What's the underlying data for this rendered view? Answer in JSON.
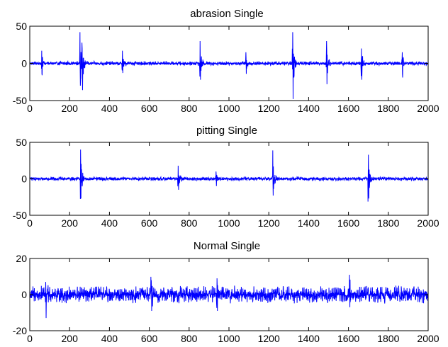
{
  "chart_data": [
    {
      "type": "line",
      "title": "abrasion Single",
      "xlabel": "",
      "ylabel": "",
      "xlim": [
        0,
        2000
      ],
      "ylim": [
        -50,
        50
      ],
      "x_ticks": [
        0,
        200,
        400,
        600,
        800,
        1000,
        1200,
        1400,
        1600,
        1800,
        2000
      ],
      "y_ticks": [
        -50,
        0,
        50
      ],
      "grid": false,
      "series": [
        {
          "color": "#0000ff",
          "sample_step": 1,
          "x_range": [
            0,
            2000
          ],
          "baseline_amplitude": 3,
          "bursts": [
            {
              "x": 60,
              "peak": 17,
              "trough": -16
            },
            {
              "x": 252,
              "peak": 42,
              "trough": -30
            },
            {
              "x": 263,
              "peak": 20,
              "trough": -36
            },
            {
              "x": 465,
              "peak": 17,
              "trough": -13
            },
            {
              "x": 855,
              "peak": 30,
              "trough": -22
            },
            {
              "x": 1085,
              "peak": 15,
              "trough": -14
            },
            {
              "x": 1320,
              "peak": 42,
              "trough": -48
            },
            {
              "x": 1490,
              "peak": 30,
              "trough": -28
            },
            {
              "x": 1665,
              "peak": 20,
              "trough": -22
            },
            {
              "x": 1870,
              "peak": 15,
              "trough": -19
            }
          ]
        }
      ]
    },
    {
      "type": "line",
      "title": "pitting Single",
      "xlabel": "",
      "ylabel": "",
      "xlim": [
        0,
        2000
      ],
      "ylim": [
        -50,
        50
      ],
      "x_ticks": [
        0,
        200,
        400,
        600,
        800,
        1000,
        1200,
        1400,
        1600,
        1800,
        2000
      ],
      "y_ticks": [
        -50,
        0,
        50
      ],
      "grid": false,
      "series": [
        {
          "color": "#0000ff",
          "sample_step": 1,
          "x_range": [
            0,
            2000
          ],
          "baseline_amplitude": 3,
          "bursts": [
            {
              "x": 255,
              "peak": 40,
              "trough": -27
            },
            {
              "x": 745,
              "peak": 18,
              "trough": -15
            },
            {
              "x": 935,
              "peak": 10,
              "trough": -10
            },
            {
              "x": 1220,
              "peak": 39,
              "trough": -23
            },
            {
              "x": 1700,
              "peak": 33,
              "trough": -27
            }
          ]
        }
      ]
    },
    {
      "type": "line",
      "title": "Normal Single",
      "xlabel": "",
      "ylabel": "",
      "xlim": [
        0,
        2000
      ],
      "ylim": [
        -20,
        20
      ],
      "x_ticks": [
        0,
        200,
        400,
        600,
        800,
        1000,
        1200,
        1400,
        1600,
        1800,
        2000
      ],
      "y_ticks": [
        -20,
        0,
        20
      ],
      "grid": false,
      "series": [
        {
          "color": "#0000ff",
          "sample_step": 1,
          "x_range": [
            0,
            2000
          ],
          "baseline_amplitude": 5,
          "bursts": [
            {
              "x": 80,
              "peak": 7,
              "trough": -13
            },
            {
              "x": 610,
              "peak": 8,
              "trough": -9
            },
            {
              "x": 940,
              "peak": 9,
              "trough": -9
            },
            {
              "x": 1605,
              "peak": 11,
              "trough": -7
            }
          ]
        }
      ]
    }
  ]
}
